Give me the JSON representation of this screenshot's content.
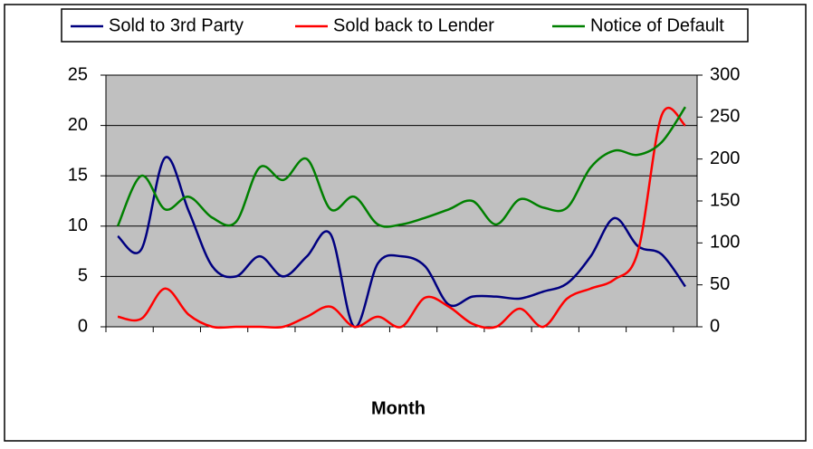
{
  "chart_data": {
    "type": "line",
    "xlabel": "Month",
    "categories": [
      null,
      null,
      null,
      null,
      null,
      null,
      null,
      null,
      null,
      null,
      null,
      null,
      null,
      null,
      null,
      null,
      null,
      null,
      null,
      null,
      null,
      null,
      null,
      null,
      null
    ],
    "series": [
      {
        "name": "Sold to 3rd Party",
        "color": "#000080",
        "values": [
          9,
          7.7,
          16.8,
          11.5,
          6,
          5,
          7,
          5,
          7,
          9.2,
          0,
          6.3,
          7,
          6,
          2.2,
          3,
          3,
          2.8,
          3.5,
          4.3,
          7,
          10.8,
          8,
          7.2,
          4
        ]
      },
      {
        "name": "Sold back to Lender",
        "color": "#ff0000",
        "values": [
          1,
          0.8,
          3.8,
          1.2,
          0,
          0,
          0,
          0,
          1,
          2,
          0,
          1,
          0,
          2.9,
          2,
          0.3,
          0,
          1.8,
          0,
          2.8,
          3.8,
          4.7,
          7.5,
          21,
          20
        ]
      },
      {
        "name": "Notice of Default",
        "color": "#008000",
        "axis": "y2",
        "values": [
          120,
          180,
          140,
          155,
          130,
          125,
          190,
          175,
          200,
          140,
          155,
          122,
          122,
          130,
          140,
          150,
          122,
          152,
          142,
          142,
          190,
          210,
          205,
          220,
          262
        ]
      }
    ],
    "ylim": [
      0,
      25
    ],
    "yticks": [
      0,
      5,
      10,
      15,
      20,
      25
    ],
    "y2lim": [
      0,
      300
    ],
    "y2ticks": [
      0,
      50,
      100,
      150,
      200,
      250,
      300
    ],
    "grid": true,
    "legend": "top"
  }
}
